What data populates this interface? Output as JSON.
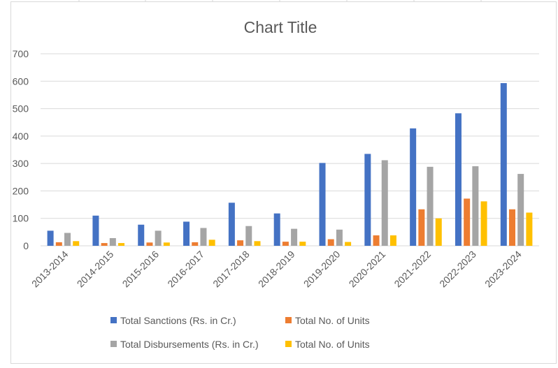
{
  "chart_data": {
    "type": "bar",
    "title": "Chart Title",
    "categories": [
      "2013-2014",
      "2014-2015",
      "2015-2016",
      "2016-2017",
      "2017-2018",
      "2018-2019",
      "2019-2020",
      "2020-2021",
      "2021-2022",
      "2022-2023",
      "2023-2024"
    ],
    "series": [
      {
        "name": "Total Sanctions (Rs. in Cr.)",
        "color": "#4472c4",
        "values": [
          55,
          110,
          77,
          88,
          157,
          118,
          302,
          335,
          428,
          483,
          593
        ]
      },
      {
        "name": "Total No. of Units",
        "color": "#ed7d31",
        "values": [
          13,
          10,
          12,
          13,
          20,
          15,
          24,
          38,
          133,
          172,
          133
        ]
      },
      {
        "name": "Total Disbursements (Rs. in Cr.)",
        "color": "#a5a5a5",
        "values": [
          47,
          28,
          55,
          65,
          72,
          62,
          59,
          312,
          288,
          290,
          262
        ]
      },
      {
        "name": "Total No. of Units",
        "color": "#ffc000",
        "values": [
          17,
          10,
          12,
          22,
          17,
          15,
          14,
          38,
          100,
          162,
          121
        ]
      }
    ],
    "yticks": [
      "0",
      "100",
      "200",
      "300",
      "400",
      "500",
      "600",
      "700"
    ],
    "ylim": [
      0,
      700
    ],
    "grid": true,
    "legend_position": "bottom"
  }
}
